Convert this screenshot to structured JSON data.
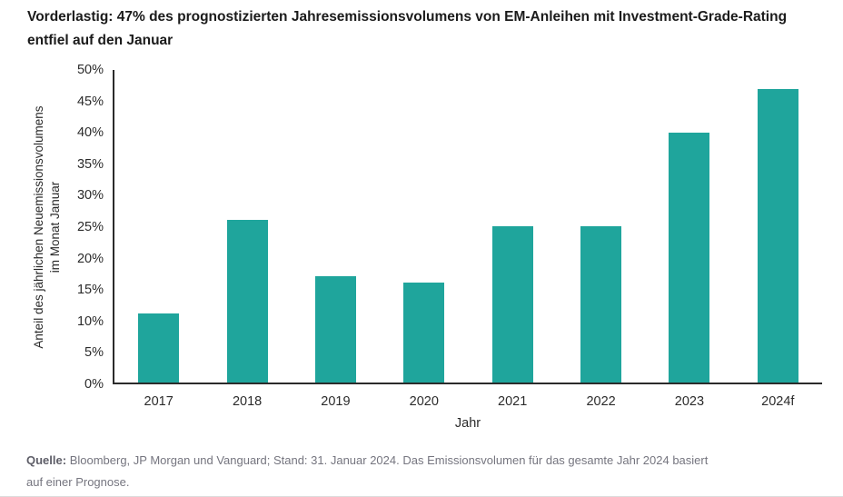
{
  "colors": {
    "bar": "#1FA59C",
    "axis": "#2B2B2B",
    "title_text": "#1B1B1B",
    "source_text": "#75757F",
    "divider": "#DCDCDC"
  },
  "source": {
    "label": "Quelle:",
    "text": " Bloomberg, JP Morgan und Vanguard; Stand: 31. Januar 2024. Das Emissionsvolumen für das gesamte Jahr 2024 basiert\nauf einer Prognose."
  },
  "chart_data": {
    "type": "bar",
    "title": "Vorderlastig: 47% des prognostizierten Jahresemissionsvolumens von EM-Anleihen mit Investment-Grade-Rating\nentfiel auf den Januar",
    "categories": [
      "2017",
      "2018",
      "2019",
      "2020",
      "2021",
      "2022",
      "2023",
      "2024f"
    ],
    "values": [
      11,
      26,
      17,
      16,
      25,
      25,
      40,
      47
    ],
    "xlabel": "Jahr",
    "ylabel": "Anteil des jährlichen Neuemissionsvolumens\nim Monat Januar",
    "ylim": [
      0,
      50
    ],
    "yticks": [
      0,
      5,
      10,
      15,
      20,
      25,
      30,
      35,
      40,
      45,
      50
    ],
    "ytick_suffix": "%",
    "grid": false,
    "legend": "none",
    "bar_color": "#1FA59C"
  }
}
